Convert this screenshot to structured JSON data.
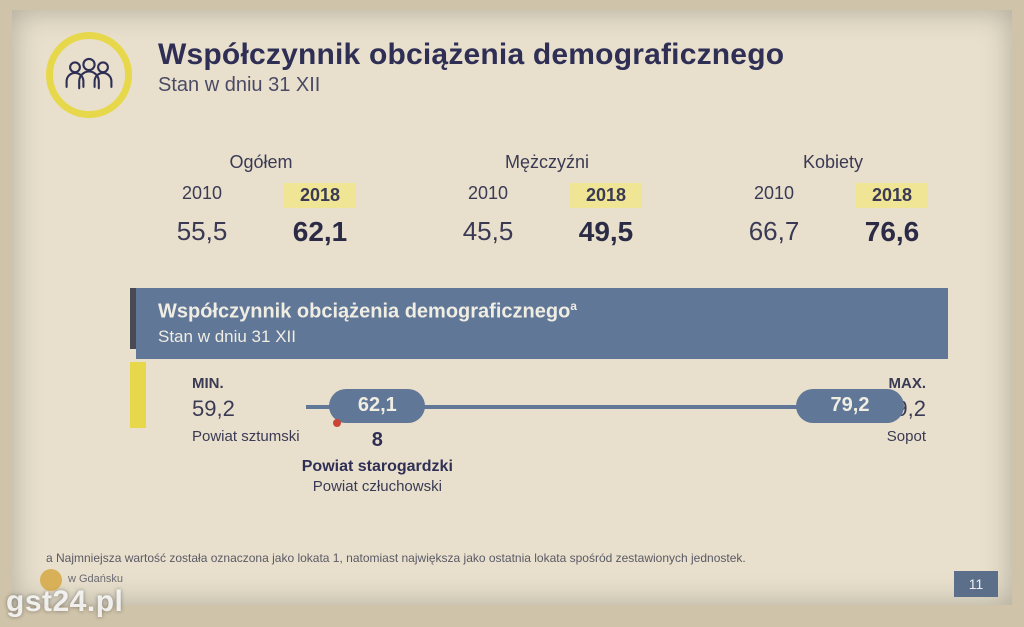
{
  "title": "Współczynnik obciążenia demograficznego",
  "subtitle": "Stan w dniu 31 XII",
  "icon": "people-group-icon",
  "colors": {
    "ring": "#e6d84a",
    "header_text": "#2f2f56",
    "body_text": "#3a3a55",
    "highlight_bg": "#efe595",
    "band_bg": "#607797",
    "band_text": "#f0ede3",
    "slide_bg": "#e8e0cc",
    "page_bg": "#cfc3a9",
    "yellow_bar": "#e6d84a",
    "dark_bar": "#4a4a55"
  },
  "fonts": {
    "title_pt": 30,
    "subtitle_pt": 20,
    "group_label_pt": 18,
    "year_pt": 18,
    "value_pt": 26,
    "value_bold_pt": 28,
    "footnote_pt": 12
  },
  "groups": [
    {
      "label": "Ogółem",
      "years": [
        "2010",
        "2018"
      ],
      "values": [
        "55,5",
        "62,1"
      ]
    },
    {
      "label": "Mężczyźni",
      "years": [
        "2010",
        "2018"
      ],
      "values": [
        "45,5",
        "49,5"
      ]
    },
    {
      "label": "Kobiety",
      "years": [
        "2010",
        "2018"
      ],
      "values": [
        "66,7",
        "76,6"
      ]
    }
  ],
  "range": {
    "title": "Współczynnik obciążenia demograficznego",
    "title_sup": "a",
    "subtitle": "Stan w dniu 31 XII",
    "min_label": "MIN.",
    "max_label": "MAX.",
    "min_value": "59,2",
    "max_value": "79,2",
    "min_place": "Powiat sztumski",
    "max_place": "Sopot",
    "center_value": "62,1",
    "rank": "8",
    "rank_place_bold": "Powiat starogardzki",
    "rank_place_other": "Powiat człuchowski",
    "scale_min": 59.2,
    "scale_max": 79.2,
    "center_numeric": 62.1,
    "pill_color": "#607797",
    "track_color": "#607797"
  },
  "footnote": "a Najmniejsza wartość została oznaczona jako lokata 1, natomiast największa jako ostatnia lokata spośród zestawionych jednostek.",
  "footer_label": "w Gdańsku",
  "page_number": "11",
  "watermark": "gst24.pl"
}
